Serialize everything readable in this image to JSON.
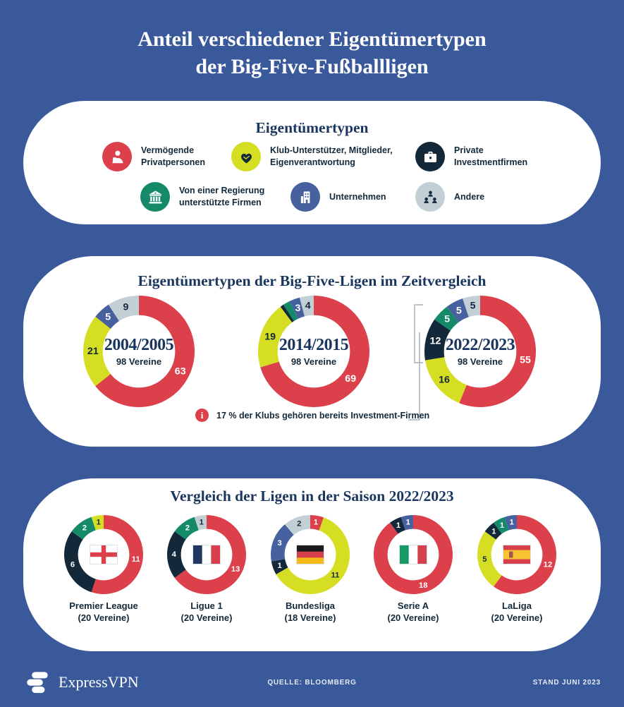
{
  "palette": {
    "bg": "#3a599a",
    "card": "#ffffff",
    "red": "#dc404b",
    "yellow": "#d6de24",
    "navy": "#13293a",
    "green": "#148a68",
    "blue": "#46619e",
    "gray": "#c2cfd4",
    "heading": "#1a365e",
    "ink": "#13293a",
    "bracket": "#a7b4bf"
  },
  "header": {
    "title_line1": "Anteil verschiedener Eigentümertypen",
    "title_line2": "der Big-Five-Fußballligen"
  },
  "legend": {
    "title": "Eigentümertypen",
    "items": [
      {
        "label": "Vermögende\nPrivatpersonen",
        "color": "#dc404b",
        "icon": "person-icon",
        "icon_color": "#ffffff"
      },
      {
        "label": "Klub-Unterstützer, Mitglieder,\nEigenverantwortung",
        "color": "#d6de24",
        "icon": "handshake-heart-icon",
        "icon_color": "#13293a"
      },
      {
        "label": "Private\nInvestmentfirmen",
        "color": "#13293a",
        "icon": "briefcase-icon",
        "icon_color": "#ffffff"
      },
      {
        "label": "Von einer Regierung\nunterstützte Firmen",
        "color": "#148a68",
        "icon": "bank-icon",
        "icon_color": "#ffffff"
      },
      {
        "label": "Unternehmen",
        "color": "#46619e",
        "icon": "building-icon",
        "icon_color": "#ffffff"
      },
      {
        "label": "Andere",
        "color": "#c2cfd4",
        "icon": "people-group-icon",
        "icon_color": "#13293a"
      }
    ]
  },
  "chart_data": [
    {
      "type": "pie",
      "subtype": "donut",
      "title": "Eigentümertypen der Big-Five-Ligen im Zeitvergleich",
      "note_icon": "i",
      "note": "17 % der Klubs gehören bereits Investment-Firmen",
      "donuts": [
        {
          "center_title": "2004/2005",
          "center_subtitle": "98 Vereine",
          "total": 98,
          "segments": [
            {
              "owner": "Vermögende Privatpersonen",
              "color_key": "red",
              "value": 63,
              "label": "63"
            },
            {
              "owner": "Klub-Unterstützer, Mitglieder, Eigenverantwortung",
              "color_key": "yellow",
              "value": 21,
              "label": "21"
            },
            {
              "owner": "Unternehmen",
              "color_key": "blue",
              "value": 5,
              "label": "5"
            },
            {
              "owner": "Andere",
              "color_key": "gray",
              "value": 9,
              "label": "9"
            }
          ]
        },
        {
          "center_title": "2014/2015",
          "center_subtitle": "98 Vereine",
          "total": 98,
          "segments": [
            {
              "owner": "Vermögende Privatpersonen",
              "color_key": "red",
              "value": 69,
              "label": "69"
            },
            {
              "owner": "Klub-Unterstützer, Mitglieder, Eigenverantwortung",
              "color_key": "yellow",
              "value": 19,
              "label": "19"
            },
            {
              "owner": "Private Investmentfirmen",
              "color_key": "navy",
              "value": 1,
              "label": ""
            },
            {
              "owner": "Von einer Regierung unterstützte Firmen",
              "color_key": "green",
              "value": 2,
              "label": ""
            },
            {
              "owner": "Unternehmen",
              "color_key": "blue",
              "value": 3,
              "label": "3"
            },
            {
              "owner": "Andere",
              "color_key": "gray",
              "value": 4,
              "label": "4"
            }
          ]
        },
        {
          "center_title": "2022/2023",
          "center_subtitle": "98 Vereine",
          "total": 98,
          "segments": [
            {
              "owner": "Vermögende Privatpersonen",
              "color_key": "red",
              "value": 55,
              "label": "55"
            },
            {
              "owner": "Klub-Unterstützer, Mitglieder, Eigenverantwortung",
              "color_key": "yellow",
              "value": 16,
              "label": "16"
            },
            {
              "owner": "Private Investmentfirmen",
              "color_key": "navy",
              "value": 12,
              "label": "12"
            },
            {
              "owner": "Von einer Regierung unterstützte Firmen",
              "color_key": "green",
              "value": 5,
              "label": "5"
            },
            {
              "owner": "Unternehmen",
              "color_key": "blue",
              "value": 5,
              "label": "5"
            },
            {
              "owner": "Andere",
              "color_key": "gray",
              "value": 5,
              "label": "5"
            }
          ]
        }
      ]
    },
    {
      "type": "pie",
      "subtype": "donut",
      "title": "Vergleich der Ligen in der Saison 2022/2023",
      "donuts": [
        {
          "league": "Premier League",
          "sub": "(20 Vereine)",
          "total": 20,
          "flag": {
            "name": "england",
            "type": "cross",
            "colors": [
              "#ffffff",
              "#dc404b"
            ]
          },
          "segments": [
            {
              "owner": "Vermögende Privatpersonen",
              "color_key": "red",
              "value": 11,
              "label": "11"
            },
            {
              "owner": "Private Investmentfirmen",
              "color_key": "navy",
              "value": 6,
              "label": "6"
            },
            {
              "owner": "Von einer Regierung unterstützte Firmen",
              "color_key": "green",
              "value": 2,
              "label": "2"
            },
            {
              "owner": "Klub-Unterstützer, Mitglieder, Eigenverantwortung",
              "color_key": "yellow",
              "value": 1,
              "label": "1"
            }
          ]
        },
        {
          "league": "Ligue 1",
          "sub": "(20 Vereine)",
          "total": 20,
          "flag": {
            "name": "france",
            "type": "vertical",
            "colors": [
              "#21375f",
              "#ffffff",
              "#d6404c"
            ]
          },
          "segments": [
            {
              "owner": "Vermögende Privatpersonen",
              "color_key": "red",
              "value": 13,
              "label": "13"
            },
            {
              "owner": "Private Investmentfirmen",
              "color_key": "navy",
              "value": 4,
              "label": "4"
            },
            {
              "owner": "Von einer Regierung unterstützte Firmen",
              "color_key": "green",
              "value": 2,
              "label": "2"
            },
            {
              "owner": "Andere",
              "color_key": "gray",
              "value": 1,
              "label": "1"
            }
          ]
        },
        {
          "league": "Bundesliga",
          "sub": "(18 Vereine)",
          "total": 18,
          "flag": {
            "name": "germany",
            "type": "horizontal",
            "colors": [
              "#1a1a1a",
              "#d6404c",
              "#f7b916"
            ]
          },
          "segments": [
            {
              "owner": "Vermögende Privatpersonen",
              "color_key": "red",
              "value": 1,
              "label": "1"
            },
            {
              "owner": "Klub-Unterstützer, Mitglieder, Eigenverantwortung",
              "color_key": "yellow",
              "value": 11,
              "label": "11"
            },
            {
              "owner": "Private Investmentfirmen",
              "color_key": "navy",
              "value": 1,
              "label": "1"
            },
            {
              "owner": "Unternehmen",
              "color_key": "blue",
              "value": 3,
              "label": "3"
            },
            {
              "owner": "Andere",
              "color_key": "gray",
              "value": 2,
              "label": "2"
            }
          ]
        },
        {
          "league": "Serie A",
          "sub": "(20 Vereine)",
          "total": 20,
          "flag": {
            "name": "italy",
            "type": "vertical",
            "colors": [
              "#169a66",
              "#ffffff",
              "#d6404c"
            ]
          },
          "segments": [
            {
              "owner": "Vermögende Privatpersonen",
              "color_key": "red",
              "value": 18,
              "label": "18"
            },
            {
              "owner": "Private Investmentfirmen",
              "color_key": "navy",
              "value": 1,
              "label": "1"
            },
            {
              "owner": "Unternehmen",
              "color_key": "blue",
              "value": 1,
              "label": "1"
            }
          ]
        },
        {
          "league": "LaLiga",
          "sub": "(20 Vereine)",
          "total": 20,
          "flag": {
            "name": "spain",
            "type": "horizontal",
            "colors": [
              "#d6404c",
              "#f7c331",
              "#d6404c"
            ],
            "weights": [
              1,
              2,
              1
            ],
            "emblem": true,
            "emblem_color": "#a5574f"
          },
          "segments": [
            {
              "owner": "Vermögende Privatpersonen",
              "color_key": "red",
              "value": 12,
              "label": "12"
            },
            {
              "owner": "Klub-Unterstützer, Mitglieder, Eigenverantwortung",
              "color_key": "yellow",
              "value": 5,
              "label": "5"
            },
            {
              "owner": "Private Investmentfirmen",
              "color_key": "navy",
              "value": 1,
              "label": "1"
            },
            {
              "owner": "Von einer Regierung unterstützte Firmen",
              "color_key": "green",
              "value": 1,
              "label": "1"
            },
            {
              "owner": "Unternehmen",
              "color_key": "blue",
              "value": 1,
              "label": "1"
            }
          ]
        }
      ]
    }
  ],
  "footer": {
    "brand": "ExpressVPN",
    "source": "QUELLE: BLOOMBERG",
    "stand": "STAND JUNI 2023"
  }
}
